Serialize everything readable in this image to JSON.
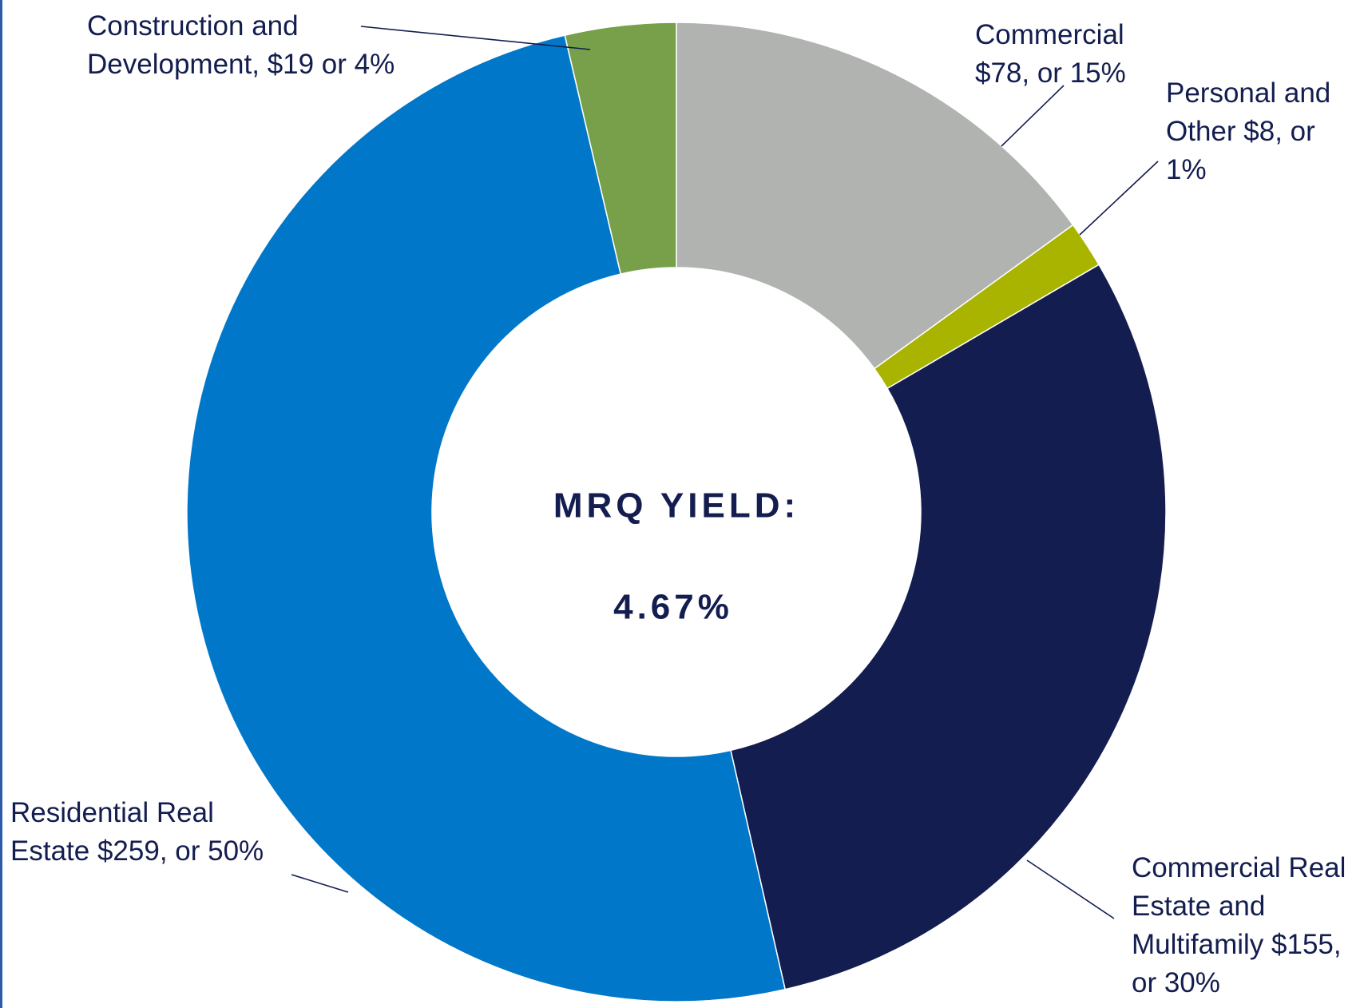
{
  "chart_data": {
    "type": "donut",
    "categories": [
      "Commercial",
      "Personal and Other",
      "Commercial Real Estate and Multifamily",
      "Residential Real Estate",
      "Construction and Development,"
    ],
    "values": [
      78,
      8,
      155,
      259,
      19
    ],
    "value_labels": [
      "$78, or 15%",
      "$8, or 1%",
      "$155, or 30%",
      "$259, or 50%",
      "$19 or 4%"
    ],
    "colors": [
      "#b1b3b1",
      "#a8b400",
      "#131d4f",
      "#0077c8",
      "#78a04a"
    ],
    "center_label": "MRQ YIELD:",
    "center_value": "4.67%"
  }
}
